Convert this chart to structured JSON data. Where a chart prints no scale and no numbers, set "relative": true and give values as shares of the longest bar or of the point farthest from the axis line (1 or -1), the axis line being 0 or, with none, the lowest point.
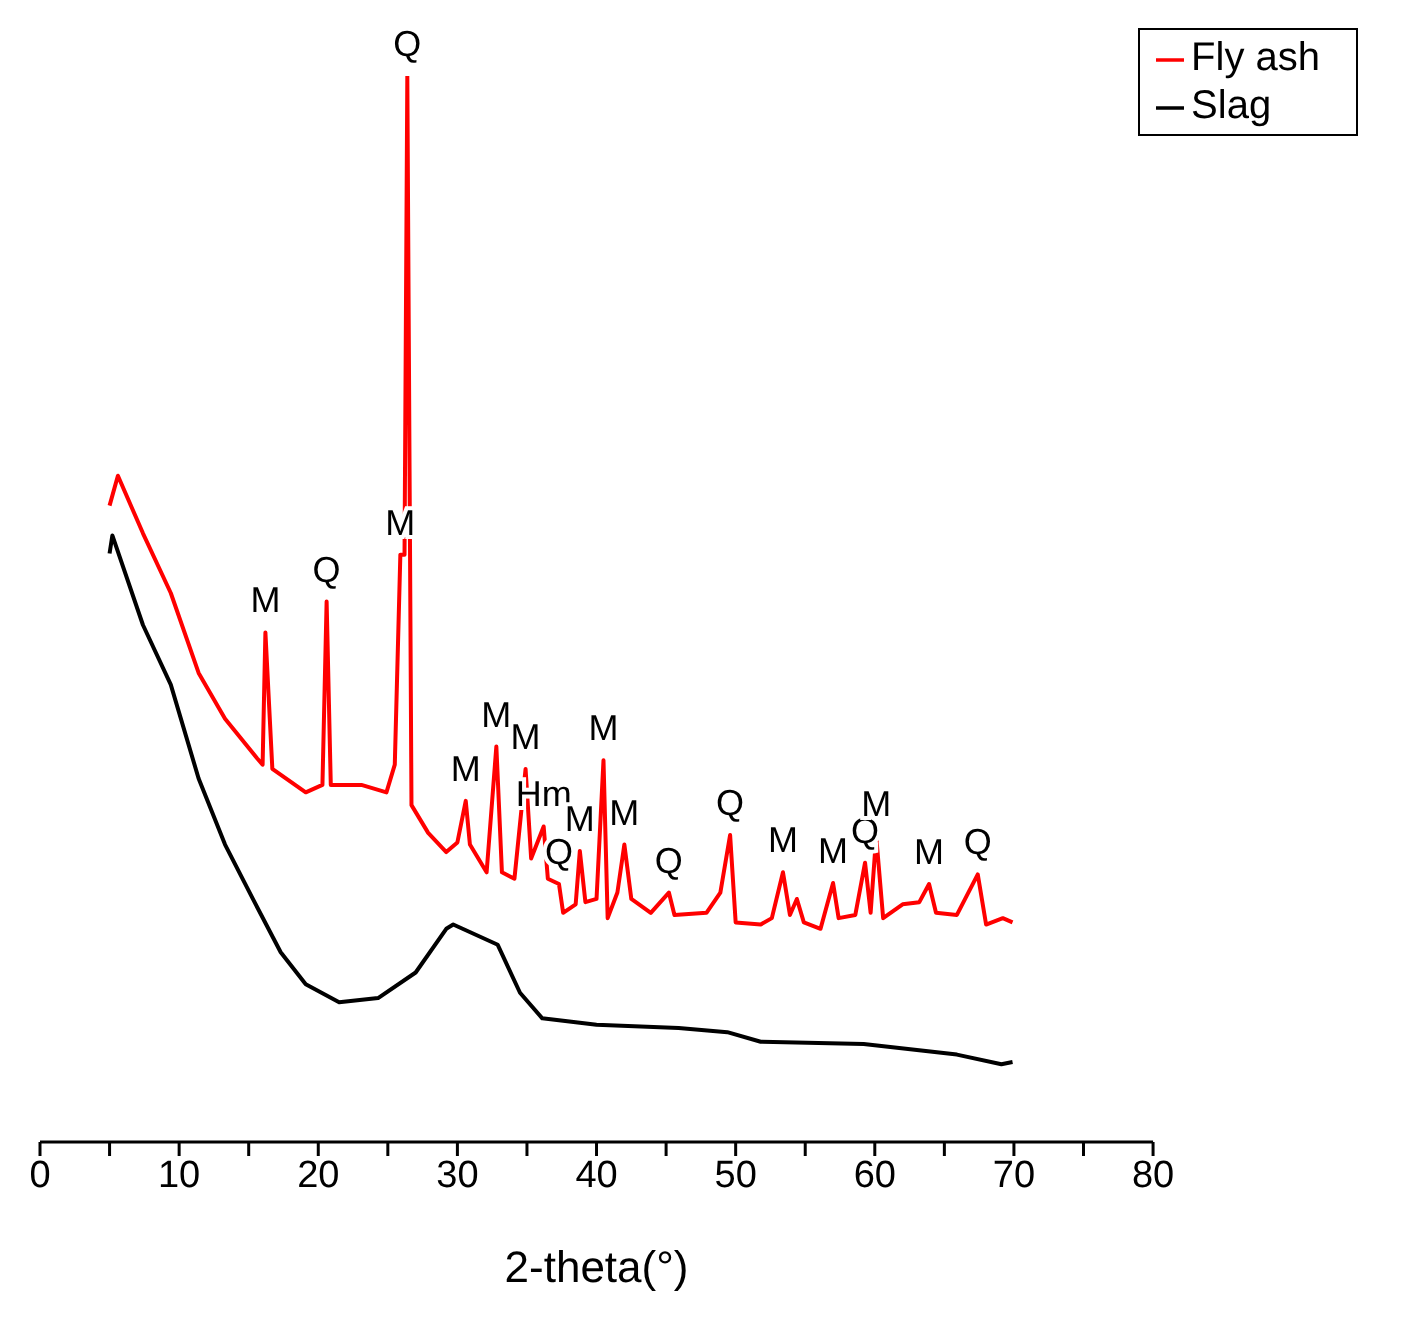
{
  "chart_data": {
    "type": "line",
    "xlabel": "2-theta(°)",
    "relative": true,
    "legend": "top right",
    "xlim": [
      0,
      80
    ],
    "xticks": [
      0,
      {
        "value": 5,
        "label": null
      },
      10,
      {
        "value": 15,
        "label": null
      },
      20,
      {
        "value": 25,
        "label": null
      },
      30,
      {
        "value": 35,
        "label": null
      },
      40,
      {
        "value": 45,
        "label": null
      },
      50,
      {
        "value": 55,
        "label": null
      },
      60,
      {
        "value": 65,
        "label": null
      },
      70,
      {
        "value": 75,
        "label": null
      },
      80
    ],
    "series": [
      {
        "name": "Fly ash",
        "color": "#ff0000",
        "x": [
          5.0,
          5.6,
          7.4,
          9.4,
          11.4,
          13.3,
          15.6,
          16.0,
          16.2,
          16.7,
          19.1,
          20.3,
          20.6,
          20.9,
          23.1,
          24.9,
          25.5,
          25.9,
          26.2,
          26.4,
          26.7,
          27.9,
          29.2,
          30.0,
          30.6,
          30.9,
          32.1,
          32.8,
          33.2,
          34.1,
          34.9,
          35.3,
          36.2,
          36.5,
          37.3,
          37.6,
          38.5,
          38.8,
          39.2,
          40.0,
          40.5,
          40.8,
          41.5,
          42.0,
          42.5,
          43.9,
          45.2,
          45.6,
          47.9,
          48.9,
          49.6,
          50.0,
          51.8,
          52.6,
          53.4,
          53.9,
          54.4,
          54.9,
          56.1,
          57.0,
          57.4,
          58.6,
          59.3,
          59.7,
          60.1,
          60.6,
          62.0,
          63.2,
          63.9,
          64.4,
          65.9,
          67.4,
          68.0,
          69.2,
          69.9
        ],
        "values": [
          0.597,
          0.625,
          0.571,
          0.515,
          0.44,
          0.397,
          0.36,
          0.354,
          0.478,
          0.35,
          0.328,
          0.335,
          0.507,
          0.335,
          0.335,
          0.328,
          0.354,
          0.551,
          0.551,
          1.0,
          0.316,
          0.29,
          0.272,
          0.281,
          0.32,
          0.279,
          0.253,
          0.371,
          0.253,
          0.247,
          0.35,
          0.266,
          0.296,
          0.247,
          0.242,
          0.215,
          0.223,
          0.273,
          0.225,
          0.228,
          0.358,
          0.21,
          0.234,
          0.279,
          0.228,
          0.215,
          0.234,
          0.213,
          0.215,
          0.234,
          0.288,
          0.206,
          0.204,
          0.21,
          0.253,
          0.213,
          0.228,
          0.206,
          0.2,
          0.243,
          0.21,
          0.213,
          0.262,
          0.215,
          0.287,
          0.21,
          0.223,
          0.225,
          0.242,
          0.215,
          0.213,
          0.251,
          0.204,
          0.21,
          0.206
        ]
      },
      {
        "name": "Slag",
        "color": "#000000",
        "x": [
          5.0,
          5.2,
          7.4,
          9.4,
          11.4,
          13.3,
          15.3,
          17.3,
          19.1,
          21.5,
          24.3,
          27.0,
          29.2,
          29.7,
          32.9,
          34.5,
          36.1,
          40.0,
          45.9,
          49.4,
          51.8,
          59.2,
          65.9,
          69.1,
          69.9
        ],
        "values": [
          0.552,
          0.569,
          0.485,
          0.429,
          0.341,
          0.279,
          0.228,
          0.178,
          0.148,
          0.131,
          0.135,
          0.159,
          0.2,
          0.204,
          0.185,
          0.14,
          0.116,
          0.11,
          0.107,
          0.103,
          0.094,
          0.092,
          0.082,
          0.073,
          0.075
        ]
      }
    ],
    "annotations": [
      {
        "text": "M",
        "x": 16.2,
        "y": 0.478
      },
      {
        "text": "Q",
        "x": 20.6,
        "y": 0.507
      },
      {
        "text": "M",
        "x": 25.9,
        "y": 0.551
      },
      {
        "text": "Q",
        "x": 26.4,
        "y": 1.0
      },
      {
        "text": "M",
        "x": 30.6,
        "y": 0.32
      },
      {
        "text": "M",
        "x": 32.8,
        "y": 0.371
      },
      {
        "text": "M",
        "x": 34.9,
        "y": 0.35
      },
      {
        "text": "Hm",
        "x": 36.2,
        "y": 0.296
      },
      {
        "text": "Q",
        "x": 37.3,
        "y": 0.242
      },
      {
        "text": "M",
        "x": 38.8,
        "y": 0.273
      },
      {
        "text": "M",
        "x": 40.5,
        "y": 0.358
      },
      {
        "text": "M",
        "x": 42.0,
        "y": 0.279
      },
      {
        "text": "Q",
        "x": 45.2,
        "y": 0.234
      },
      {
        "text": "Q",
        "x": 49.6,
        "y": 0.288
      },
      {
        "text": "M",
        "x": 53.4,
        "y": 0.253
      },
      {
        "text": "M",
        "x": 57.0,
        "y": 0.243
      },
      {
        "text": "Q",
        "x": 59.3,
        "y": 0.262
      },
      {
        "text": "M",
        "x": 60.1,
        "y": 0.287
      },
      {
        "text": "M",
        "x": 63.9,
        "y": 0.242
      },
      {
        "text": "Q",
        "x": 67.4,
        "y": 0.251
      }
    ]
  }
}
